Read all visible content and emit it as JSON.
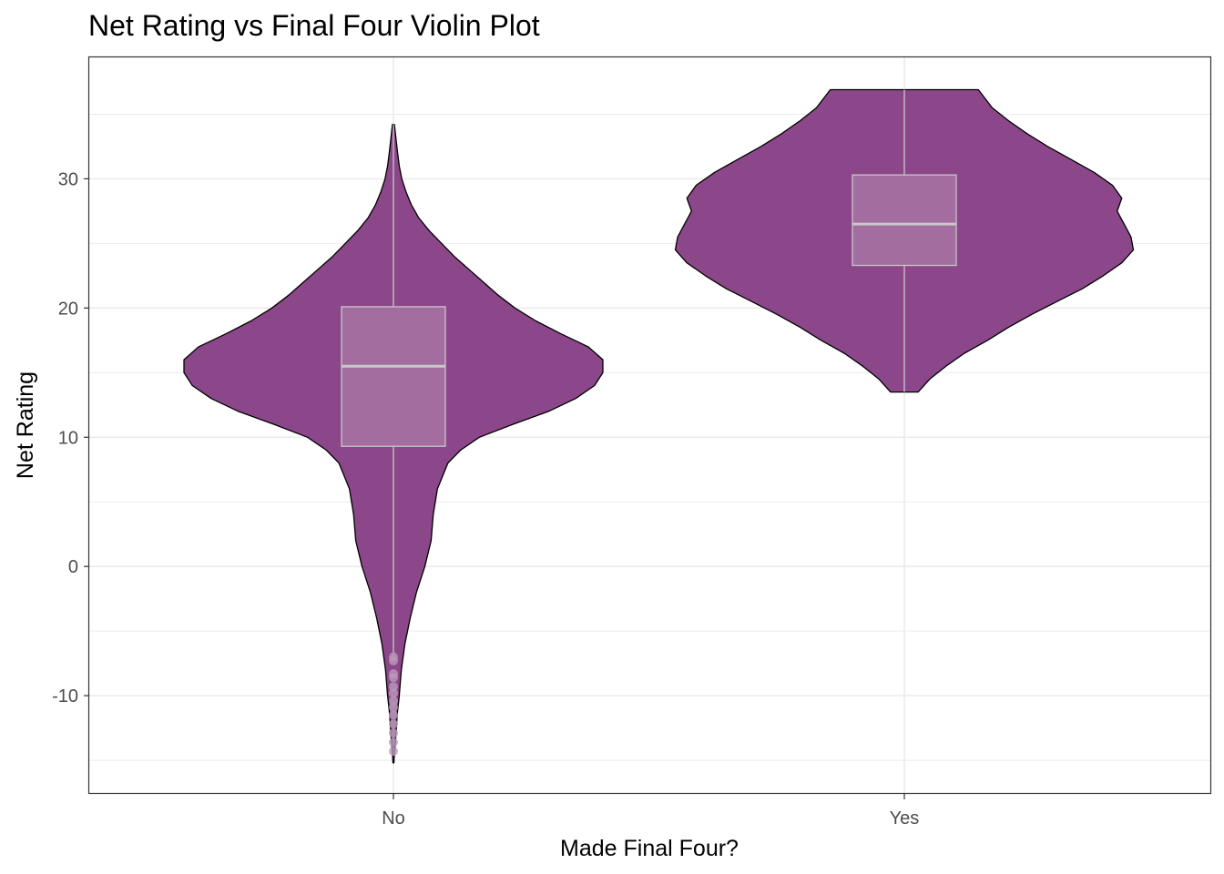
{
  "chart_data": {
    "type": "violin",
    "title": "Net Rating vs Final Four Violin Plot",
    "xlabel": "Made Final Four?",
    "ylabel": "Net Rating",
    "ylim": [
      -17.6,
      39.4
    ],
    "yticks": [
      -10,
      0,
      10,
      20,
      30
    ],
    "ytick_labels": [
      "-10",
      "0",
      "10",
      "20",
      "30"
    ],
    "grid": true,
    "colors": {
      "violin_fill": "#8b4789",
      "violin_stroke": "#000000",
      "box_fill": "#a36d9f",
      "box_stroke": "#c8c8c8",
      "grid": "#ebebeb",
      "panel_border": "#333333"
    },
    "categories": [
      {
        "label": "No",
        "min": -15.2,
        "max": 34.2,
        "box": {
          "q1": 9.3,
          "median": 15.5,
          "q3": 20.1,
          "whisker_low": -6.9,
          "whisker_high": 34.2
        },
        "outliers": [
          -7.0,
          -7.3,
          -8.3,
          -8.6,
          -9.3,
          -9.8,
          -10.4,
          -10.9,
          -11.5,
          -12.2,
          -12.9,
          -13.6,
          -14.3
        ],
        "density": [
          [
            -15.2,
            0.2
          ],
          [
            -14.5,
            0.5
          ],
          [
            -13,
            1.2
          ],
          [
            -11.5,
            1.8
          ],
          [
            -10,
            2.8
          ],
          [
            -8,
            3.8
          ],
          [
            -6,
            5.5
          ],
          [
            -4,
            8
          ],
          [
            -2,
            11
          ],
          [
            -1,
            13
          ],
          [
            0,
            15
          ],
          [
            2,
            18
          ],
          [
            4,
            19
          ],
          [
            6,
            21
          ],
          [
            8,
            26
          ],
          [
            9,
            32
          ],
          [
            10,
            41
          ],
          [
            11,
            57
          ],
          [
            12,
            74
          ],
          [
            13,
            87
          ],
          [
            14,
            96
          ],
          [
            15,
            100
          ],
          [
            16,
            100
          ],
          [
            17,
            93
          ],
          [
            18,
            80
          ],
          [
            19,
            68
          ],
          [
            20,
            58
          ],
          [
            21,
            50
          ],
          [
            22,
            43
          ],
          [
            23,
            36
          ],
          [
            24,
            29
          ],
          [
            25,
            23
          ],
          [
            26,
            17
          ],
          [
            27,
            12
          ],
          [
            28,
            8.5
          ],
          [
            29,
            6
          ],
          [
            30,
            4
          ],
          [
            31,
            2.8
          ],
          [
            32,
            2
          ],
          [
            33,
            1.3
          ],
          [
            34.2,
            0.5
          ]
        ]
      },
      {
        "label": "Yes",
        "min": 13.5,
        "max": 36.9,
        "box": {
          "q1": 23.3,
          "median": 26.5,
          "q3": 30.3,
          "whisker_low": 13.5,
          "whisker_high": 36.9
        },
        "outliers": [],
        "density": [
          [
            13.5,
            6
          ],
          [
            14.5,
            11
          ],
          [
            15.5,
            18
          ],
          [
            16.5,
            26
          ],
          [
            17.5,
            36
          ],
          [
            18.5,
            45
          ],
          [
            19.5,
            55
          ],
          [
            20.5,
            66
          ],
          [
            21.5,
            77
          ],
          [
            22.5,
            86
          ],
          [
            23.5,
            94
          ],
          [
            24.5,
            99
          ],
          [
            25.5,
            98
          ],
          [
            26.5,
            95
          ],
          [
            27.5,
            92
          ],
          [
            28.5,
            94
          ],
          [
            29.5,
            90
          ],
          [
            30.5,
            82
          ],
          [
            31.5,
            72
          ],
          [
            32.5,
            62
          ],
          [
            33.5,
            53
          ],
          [
            34.5,
            45
          ],
          [
            35.5,
            38
          ],
          [
            36.9,
            32
          ]
        ]
      }
    ]
  }
}
